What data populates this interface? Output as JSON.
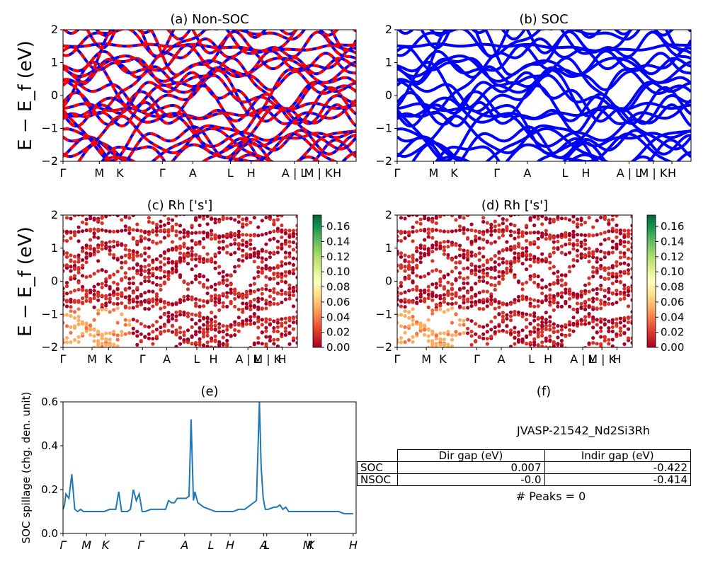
{
  "axis_label_energy": "E − E_f (eV)",
  "chart_data": [
    {
      "id": "a",
      "type": "line",
      "title": "(a) Non-SOC",
      "ylabel": "E − E_f (eV)",
      "ylim": [
        -2,
        2
      ],
      "yticks": [
        "−2",
        "−1",
        "0",
        "1",
        "2"
      ],
      "xticks": [
        "Γ",
        "M",
        "K",
        "Γ",
        "A",
        "L",
        "H",
        "A | L",
        "M | K",
        "H"
      ],
      "xtick_pos": [
        0.0,
        0.124,
        0.194,
        0.339,
        0.443,
        0.571,
        0.642,
        0.789,
        0.871,
        0.935
      ],
      "series": [
        {
          "color": "#0000ff",
          "style": "solid"
        },
        {
          "color": "#ff0000",
          "style": "dashed"
        }
      ]
    },
    {
      "id": "b",
      "type": "line",
      "title": "(b) SOC",
      "ylim": [
        -2,
        2
      ],
      "yticks": [
        "−2",
        "−1",
        "0",
        "1",
        "2"
      ],
      "xticks": [
        "Γ",
        "M",
        "K",
        "Γ",
        "A",
        "L",
        "H",
        "A | L",
        "M | K",
        "H"
      ],
      "xtick_pos": [
        0.0,
        0.124,
        0.194,
        0.339,
        0.443,
        0.571,
        0.642,
        0.789,
        0.871,
        0.935
      ],
      "series": [
        {
          "color": "#0000ff",
          "style": "solid"
        }
      ]
    },
    {
      "id": "c",
      "type": "scatter",
      "title": "(c)  Rh ['s']",
      "ylabel": "E − E_f (eV)",
      "ylim": [
        -2,
        2
      ],
      "yticks": [
        "−2",
        "−1",
        "0",
        "1",
        "2"
      ],
      "xticks": [
        "Γ",
        "M",
        "K",
        "Γ",
        "A",
        "L",
        "H",
        "A | L",
        "M | K",
        "H"
      ],
      "xtick_pos": [
        0.0,
        0.124,
        0.194,
        0.339,
        0.443,
        0.571,
        0.642,
        0.789,
        0.871,
        0.935
      ],
      "colorbar": {
        "min": 0.0,
        "max": 0.175,
        "ticks": [
          "0.00",
          "0.02",
          "0.04",
          "0.06",
          "0.08",
          "0.10",
          "0.12",
          "0.14",
          "0.16"
        ],
        "colormap": "RdYlGn"
      }
    },
    {
      "id": "d",
      "type": "scatter",
      "title": "(d) Rh ['s']",
      "ylim": [
        -2,
        2
      ],
      "yticks": [
        "−2",
        "−1",
        "0",
        "1",
        "2"
      ],
      "xticks": [
        "Γ",
        "M",
        "K",
        "Γ",
        "A",
        "L",
        "H",
        "A | L",
        "M | K",
        "H"
      ],
      "xtick_pos": [
        0.0,
        0.124,
        0.194,
        0.339,
        0.443,
        0.571,
        0.642,
        0.789,
        0.871,
        0.935
      ],
      "colorbar": {
        "min": 0.0,
        "max": 0.175,
        "ticks": [
          "0.00",
          "0.02",
          "0.04",
          "0.06",
          "0.08",
          "0.10",
          "0.12",
          "0.14",
          "0.16"
        ],
        "colormap": "RdYlGn"
      }
    },
    {
      "id": "e",
      "type": "line",
      "title": "(e)",
      "ylabel": "SOC spillage (chg. den. unit)",
      "ylim": [
        0.0,
        0.6
      ],
      "yticks": [
        "0.0",
        "0.2",
        "0.4",
        "0.6"
      ],
      "xlim": [
        0,
        100
      ],
      "xticks": [
        "Γ",
        "M",
        "K",
        "Γ",
        "A",
        "L",
        "H",
        "A",
        "L",
        "M",
        "K",
        "H"
      ],
      "xtick_pos": [
        0,
        8,
        14.5,
        26.5,
        41.5,
        50.5,
        57,
        68.5,
        69.5,
        83.5,
        84.5,
        99
      ],
      "series": [
        {
          "color": "#1f77b4",
          "x": [
            0,
            0.5,
            1,
            2,
            3,
            4,
            5,
            6,
            7,
            8,
            10,
            12,
            14,
            16,
            17,
            18,
            19,
            20,
            21,
            22,
            23,
            24,
            25,
            26,
            27,
            28,
            30,
            32,
            34,
            35,
            36,
            37,
            38,
            39,
            40,
            41,
            42,
            43,
            43.7,
            44.5,
            45,
            46,
            47,
            48,
            50,
            52,
            54,
            56,
            58,
            60,
            62,
            64,
            65,
            66,
            67,
            67.6,
            68.3,
            69,
            70,
            72,
            73,
            74,
            75,
            76,
            77,
            78,
            80,
            81,
            82,
            84,
            86,
            88,
            90,
            92,
            94,
            96,
            99
          ],
          "y": [
            0.11,
            0.13,
            0.18,
            0.16,
            0.27,
            0.11,
            0.1,
            0.11,
            0.1,
            0.1,
            0.1,
            0.1,
            0.1,
            0.11,
            0.11,
            0.11,
            0.19,
            0.1,
            0.1,
            0.1,
            0.11,
            0.2,
            0.15,
            0.18,
            0.1,
            0.1,
            0.11,
            0.11,
            0.11,
            0.11,
            0.15,
            0.14,
            0.14,
            0.16,
            0.16,
            0.16,
            0.16,
            0.17,
            0.52,
            0.15,
            0.19,
            0.14,
            0.13,
            0.12,
            0.11,
            0.1,
            0.1,
            0.1,
            0.1,
            0.11,
            0.11,
            0.13,
            0.14,
            0.15,
            0.6,
            0.3,
            0.16,
            0.11,
            0.11,
            0.12,
            0.12,
            0.13,
            0.11,
            0.12,
            0.1,
            0.1,
            0.1,
            0.1,
            0.1,
            0.1,
            0.1,
            0.1,
            0.1,
            0.1,
            0.1,
            0.09,
            0.09
          ]
        }
      ]
    }
  ],
  "panel_f": {
    "title": "(f)",
    "material": "JVASP-21542_Nd2Si3Rh",
    "table": {
      "headers": [
        "Dir gap (eV)",
        "Indir gap (eV)"
      ],
      "rows": [
        {
          "label": "SOC",
          "dir": "0.007",
          "indir": "-0.422"
        },
        {
          "label": "NSOC",
          "dir": "-0.0",
          "indir": "-0.414"
        }
      ]
    },
    "peaks": "# Peaks = 0"
  }
}
